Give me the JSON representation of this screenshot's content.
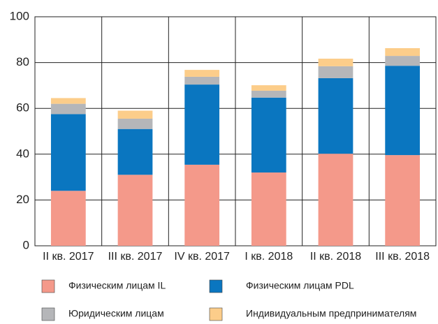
{
  "chart_data": {
    "type": "stacked_bar",
    "categories": [
      "II кв. 2017",
      "III кв. 2017",
      "IV кв. 2017",
      "I кв. 2018",
      "II кв. 2018",
      "III кв. 2018"
    ],
    "series": [
      {
        "name": "Физическим лицам IL",
        "color": "#f4998a",
        "values": [
          24,
          31,
          35.4,
          32,
          40.2,
          39.6
        ]
      },
      {
        "name": "Физическим лицам PDL",
        "color": "#0a76c0",
        "values": [
          33.5,
          20,
          35,
          32.7,
          33,
          39
        ]
      },
      {
        "name": "Юридическим лицам",
        "color": "#b5b6b9",
        "values": [
          4.5,
          4.5,
          3.4,
          3,
          5.2,
          4.3
        ]
      },
      {
        "name": "Индивидуальным предпринимателям",
        "color": "#fccd8a",
        "values": [
          2.5,
          3.5,
          3,
          2.4,
          3.3,
          3.4
        ]
      }
    ],
    "ylim": [
      0,
      100
    ],
    "yticks": [
      0,
      20,
      40,
      60,
      80,
      100
    ],
    "grid": true
  }
}
